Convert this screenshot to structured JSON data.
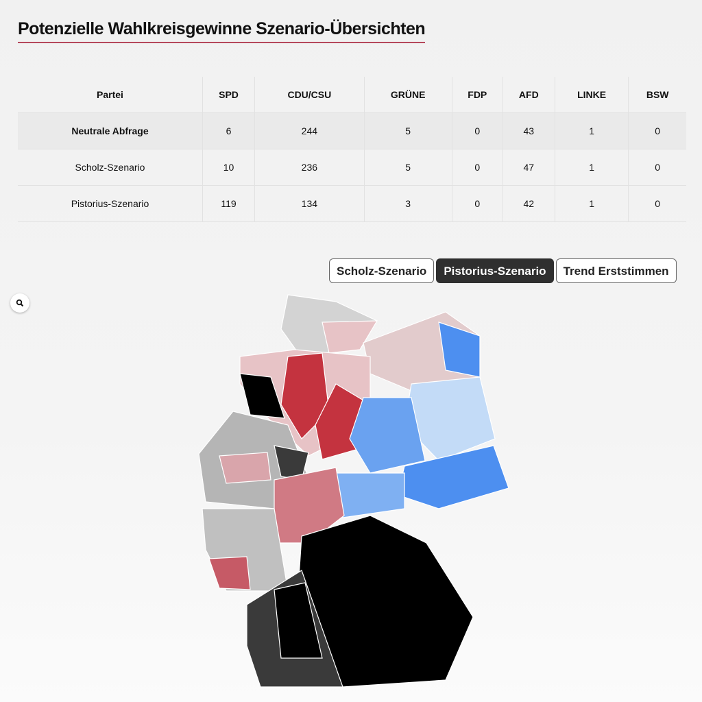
{
  "title": "Potenzielle Wahlkreisgewinne Szenario-Übersichten",
  "table": {
    "headers": [
      "Partei",
      "SPD",
      "CDU/CSU",
      "GRÜNE",
      "FDP",
      "AFD",
      "LINKE",
      "BSW"
    ],
    "rows": [
      {
        "label": "Neutrale Abfrage",
        "values": [
          "6",
          "244",
          "5",
          "0",
          "43",
          "1",
          "0"
        ]
      },
      {
        "label": "Scholz-Szenario",
        "values": [
          "10",
          "236",
          "5",
          "0",
          "47",
          "1",
          "0"
        ]
      },
      {
        "label": "Pistorius-Szenario",
        "values": [
          "119",
          "134",
          "3",
          "0",
          "42",
          "1",
          "0"
        ]
      }
    ]
  },
  "buttons": [
    {
      "label": "Scholz-Szenario",
      "active": false
    },
    {
      "label": "Pistorius-Szenario",
      "active": true
    },
    {
      "label": "Trend Erststimmen",
      "active": false
    }
  ],
  "map": {
    "zoom_icon": "search-icon"
  },
  "colors": {
    "accent": "#b5485c",
    "spd_strong": "#c4333f",
    "spd_light": "#e7c3c6",
    "cdu": "#000000",
    "cdu_mid": "#3a3a3a",
    "afd_strong": "#4d8ff0",
    "afd_light": "#c3dbf7",
    "neutral": "#b5b5b5"
  }
}
